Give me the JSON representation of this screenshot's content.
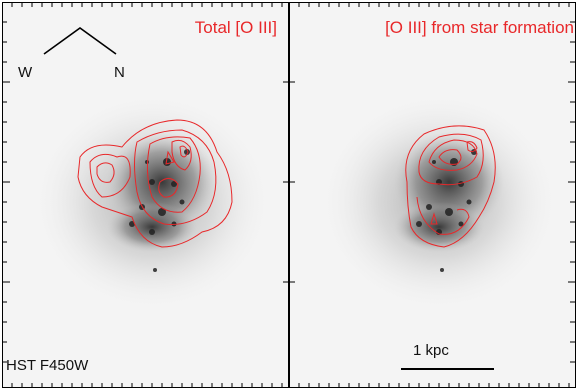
{
  "panels": [
    {
      "title": "Total [O III]",
      "filter_label": "HST F450W",
      "compass": {
        "left": "W",
        "right": "N"
      }
    },
    {
      "title": "[O III] from star formation",
      "scale_bar_label": "1 kpc"
    }
  ],
  "colors": {
    "contour": "#e8282a",
    "background": "#f4f4f4",
    "galaxy": "#555555"
  }
}
